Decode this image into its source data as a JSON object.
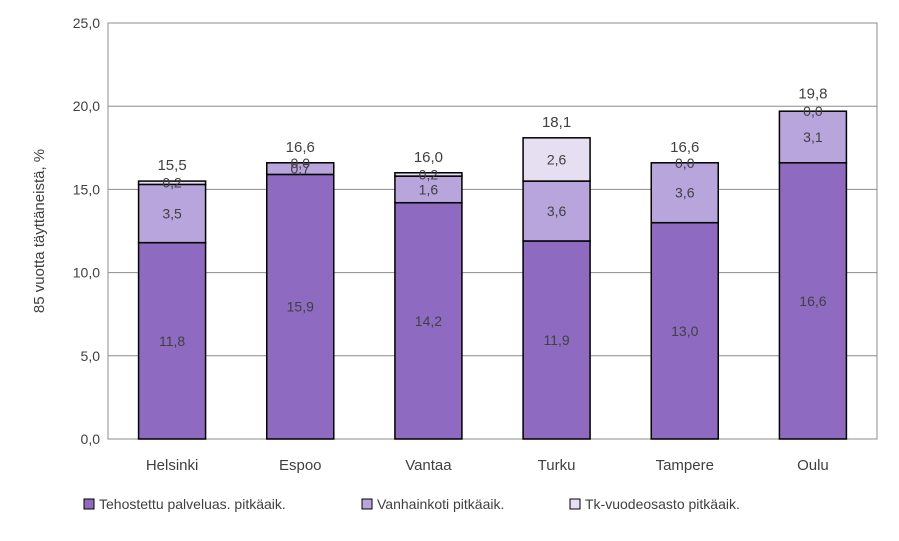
{
  "chart_data": {
    "type": "bar",
    "stacked": true,
    "ylabel": "85 vuotta täyttäneistä, %",
    "ylim": [
      0,
      25
    ],
    "yticks": [
      "0,0",
      "5,0",
      "10,0",
      "15,0",
      "20,0",
      "25,0"
    ],
    "ytick_values": [
      0,
      5,
      10,
      15,
      20,
      25
    ],
    "categories": [
      "Helsinki",
      "Espoo",
      "Vantaa",
      "Turku",
      "Tampere",
      "Oulu"
    ],
    "series": [
      {
        "name": "Tehostettu palveluas. pitkäaik.",
        "color": "#8e6bc1",
        "values": [
          11.8,
          15.9,
          14.2,
          11.9,
          13.0,
          16.6
        ],
        "labels": [
          "11,8",
          "15,9",
          "14,2",
          "11,9",
          "13,0",
          "16,6"
        ]
      },
      {
        "name": "Vanhainkoti pitkäaik.",
        "color": "#b7a5dc",
        "values": [
          3.5,
          0.7,
          1.6,
          3.6,
          3.6,
          3.1
        ],
        "labels": [
          "3,5",
          "0,7",
          "1,6",
          "3,6",
          "3,6",
          "3,1"
        ]
      },
      {
        "name": "Tk-vuodeosasto pitkäaik.",
        "color": "#e6def1",
        "values": [
          0.2,
          0.0,
          0.2,
          2.6,
          0.0,
          0.0
        ],
        "labels": [
          "0,2",
          "0,0",
          "0,2",
          "2,6",
          "0,0",
          "0,0"
        ]
      }
    ],
    "totals": [
      15.5,
      16.6,
      16.0,
      18.1,
      16.6,
      19.8
    ],
    "total_labels": [
      "15,5",
      "16,6",
      "16,0",
      "18,1",
      "16,6",
      "19,8"
    ],
    "grid": true,
    "legend_position": "bottom"
  }
}
